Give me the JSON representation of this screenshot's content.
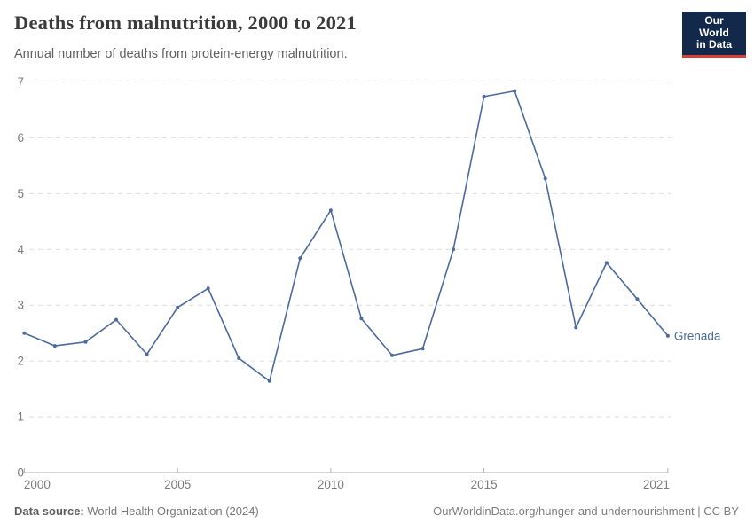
{
  "header": {
    "title": "Deaths from malnutrition, 2000 to 2021",
    "subtitle": "Annual number of deaths from protein-energy malnutrition.",
    "logo": {
      "line1": "Our World",
      "line2": "in Data",
      "bg_color": "#12294B",
      "accent_color": "#DC3E36"
    }
  },
  "chart_data": {
    "type": "line",
    "title": "Deaths from malnutrition, 2000 to 2021",
    "subtitle": "Annual number of deaths from protein-energy malnutrition.",
    "xlabel": "",
    "ylabel": "",
    "ylim": [
      0,
      7
    ],
    "yticks": [
      0,
      1,
      2,
      3,
      4,
      5,
      6,
      7
    ],
    "xticks": [
      2000,
      2005,
      2010,
      2015,
      2021
    ],
    "grid": "horizontal-dashed",
    "legend_position": "end-of-line-label",
    "x": [
      2000,
      2001,
      2002,
      2003,
      2004,
      2005,
      2006,
      2007,
      2008,
      2009,
      2010,
      2011,
      2012,
      2013,
      2014,
      2015,
      2016,
      2017,
      2018,
      2019,
      2020,
      2021
    ],
    "series": [
      {
        "name": "Grenada",
        "color": "#4C6A9C",
        "values": [
          2.5,
          2.27,
          2.34,
          2.74,
          2.12,
          2.96,
          3.3,
          2.05,
          1.64,
          3.84,
          4.7,
          2.76,
          2.1,
          2.22,
          4.0,
          6.74,
          6.84,
          5.27,
          2.6,
          3.76,
          3.11,
          2.45
        ]
      }
    ],
    "axis_colors": {
      "gridline": "#dcdcdc",
      "axis_line": "#a9a9a9",
      "tick_mark": "#b0b0b0",
      "tick_text": "#7b7b7b"
    }
  },
  "footer": {
    "source_label": "Data source:",
    "source_text": "World Health Organization (2024)",
    "attribution": "OurWorldinData.org/hunger-and-undernourishment | CC BY"
  }
}
